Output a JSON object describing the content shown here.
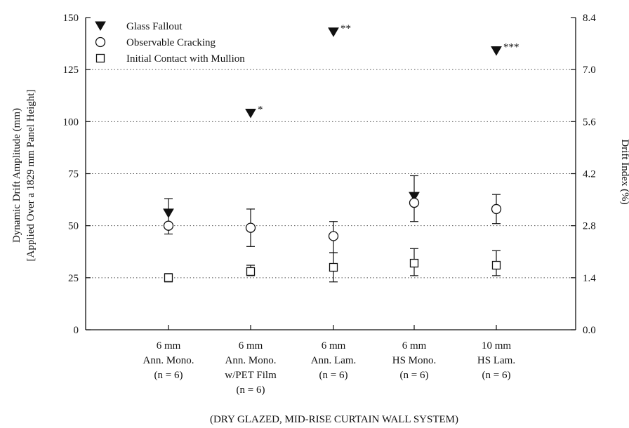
{
  "chart_data": {
    "type": "scatter",
    "title": "",
    "xlabel": "(DRY GLAZED, MID-RISE CURTAIN WALL SYSTEM)",
    "ylabel_lines": [
      "Dynamic Drift Amplitude (mm)",
      "[Applied Over a 1829 mm Panel Height]"
    ],
    "ylabel_right": "Drift Index (%)",
    "ylim": [
      0,
      150
    ],
    "y_ticks": [
      "0",
      "25",
      "50",
      "75",
      "100",
      "125",
      "150"
    ],
    "y_right_ticks": [
      "0.0",
      "1.4",
      "2.8",
      "4.2",
      "5.6",
      "7.0",
      "8.4"
    ],
    "grid": "horizontal dotted",
    "legend_position": "top-left",
    "categories": [
      [
        "6 mm",
        "Ann. Mono.",
        "(n = 6)"
      ],
      [
        "6 mm",
        "Ann. Mono.",
        "w/PET Film",
        "(n = 6)"
      ],
      [
        "6 mm",
        "Ann. Lam.",
        "(n = 6)"
      ],
      [
        "6 mm",
        "HS Mono.",
        "(n = 6)"
      ],
      [
        "10 mm",
        "HS Lam.",
        "(n = 6)"
      ]
    ],
    "series": [
      {
        "name": "Glass Fallout",
        "marker": "filled-down-triangle",
        "values": [
          56,
          104,
          143,
          64,
          134
        ],
        "annotations": [
          "",
          "*",
          "**",
          "",
          "***"
        ]
      },
      {
        "name": "Observable Cracking",
        "marker": "open-circle",
        "values": [
          50,
          49,
          45,
          61,
          58
        ],
        "error_low": [
          46,
          40,
          37,
          52,
          51
        ],
        "error_high": [
          63,
          58,
          52,
          74,
          65
        ]
      },
      {
        "name": "Initial Contact with Mullion",
        "marker": "open-square",
        "values": [
          25,
          28,
          30,
          32,
          31
        ],
        "error_low": [
          23,
          26,
          23,
          26,
          26
        ],
        "error_high": [
          27,
          31,
          37,
          39,
          38
        ]
      }
    ]
  }
}
